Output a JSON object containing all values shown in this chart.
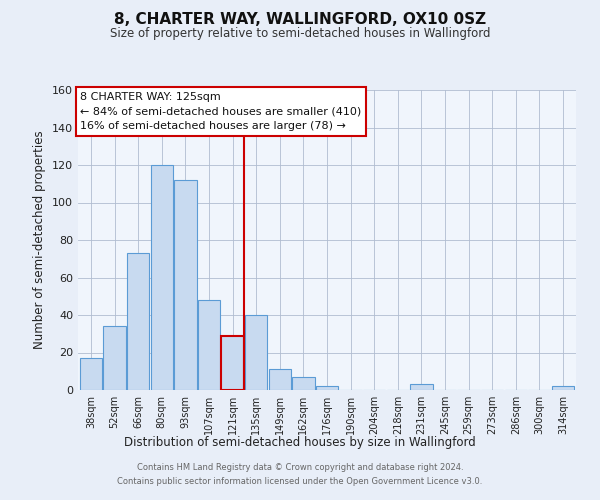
{
  "title": "8, CHARTER WAY, WALLINGFORD, OX10 0SZ",
  "subtitle": "Size of property relative to semi-detached houses in Wallingford",
  "xlabel": "Distribution of semi-detached houses by size in Wallingford",
  "ylabel": "Number of semi-detached properties",
  "footer_line1": "Contains HM Land Registry data © Crown copyright and database right 2024.",
  "footer_line2": "Contains public sector information licensed under the Open Government Licence v3.0.",
  "bar_labels": [
    "38sqm",
    "52sqm",
    "66sqm",
    "80sqm",
    "93sqm",
    "107sqm",
    "121sqm",
    "135sqm",
    "149sqm",
    "162sqm",
    "176sqm",
    "190sqm",
    "204sqm",
    "218sqm",
    "231sqm",
    "245sqm",
    "259sqm",
    "273sqm",
    "286sqm",
    "300sqm",
    "314sqm"
  ],
  "bar_values": [
    17,
    34,
    73,
    120,
    112,
    48,
    29,
    40,
    11,
    7,
    2,
    0,
    0,
    0,
    3,
    0,
    0,
    0,
    0,
    0,
    2
  ],
  "bar_color": "#c8daf0",
  "bar_edge_color": "#5b9bd5",
  "highlight_index": 6,
  "highlight_bar_color": "#c8daf0",
  "highlight_bar_edge": "#cc0000",
  "highlight_line_color": "#cc0000",
  "annotation_title": "8 CHARTER WAY: 125sqm",
  "annotation_line1": "← 84% of semi-detached houses are smaller (410)",
  "annotation_line2": "16% of semi-detached houses are larger (78) →",
  "annotation_box_color": "#ffffff",
  "annotation_box_edge": "#cc0000",
  "ylim": [
    0,
    160
  ],
  "yticks": [
    0,
    20,
    40,
    60,
    80,
    100,
    120,
    140,
    160
  ],
  "background_color": "#e8eef8",
  "plot_background_color": "#f0f5fc"
}
